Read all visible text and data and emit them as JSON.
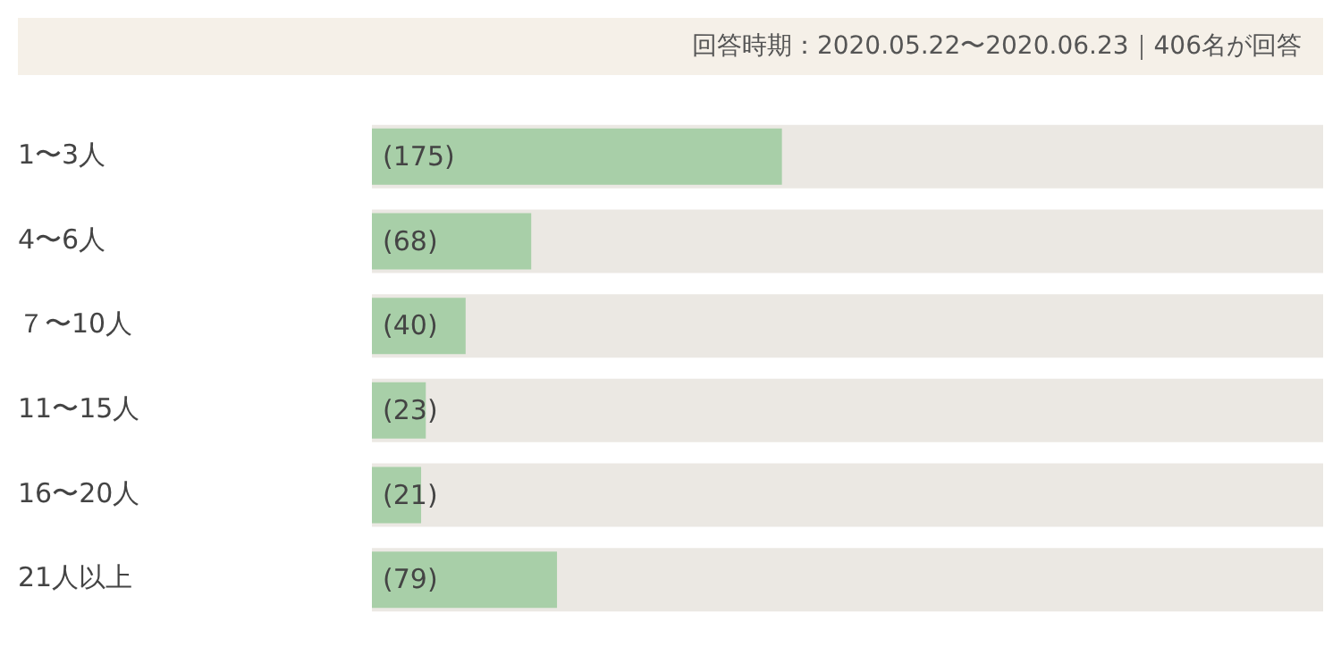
{
  "chart_data": {
    "type": "bar",
    "orientation": "horizontal",
    "subtitle": "回答時期：2020.05.22〜2020.06.23｜406名が回答",
    "categories": [
      "1〜3人",
      "4〜6人",
      "７〜10人",
      "11〜15人",
      "16〜20人",
      "21人以上"
    ],
    "values": [
      175,
      68,
      40,
      23,
      21,
      79
    ],
    "value_labels": [
      "(175)",
      "(68)",
      "(40)",
      "(23)",
      "(21)",
      "(79)"
    ],
    "color": "#a8cfa8",
    "xlim": [
      0,
      406
    ],
    "tick_labels": "y",
    "grid": false,
    "legend": false
  }
}
